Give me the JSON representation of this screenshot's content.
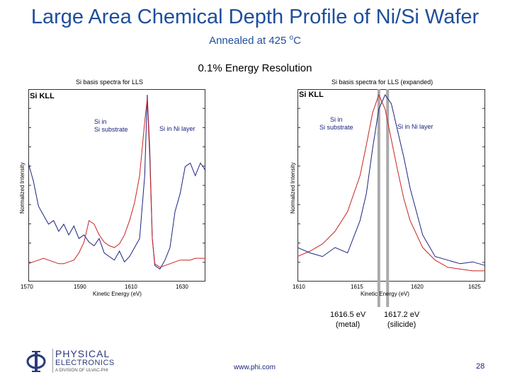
{
  "title": "Large Area Chemical Depth Profile of Ni/Si Wafer",
  "subtitle_prefix": "Annealed at 425 ",
  "subtitle_degree": "o",
  "subtitle_suffix": "C",
  "resolution": "0.1% Energy Resolution",
  "left_chart": {
    "title": "Si basis spectra for LLS",
    "corner_label": "Si KLL",
    "ylabel": "Normalized Intensity",
    "xlabel": "Kinetic Energy (eV)",
    "annotations": {
      "substrate": [
        "Si in",
        "Si substrate"
      ],
      "ni_layer": "Si in Ni layer"
    },
    "xticks": [
      "1570",
      "1590",
      "1610",
      "1630"
    ]
  },
  "right_chart": {
    "title": "Si basis spectra for LLS (expanded)",
    "corner_label": "Si KLL",
    "ylabel": "Normalized Intensity",
    "xlabel": "Kinetic Energy (eV)",
    "annotations": {
      "substrate": [
        "Si in",
        "Si substrate"
      ],
      "ni_layer": "Si in Ni layer"
    },
    "xticks": [
      "1610",
      "1615",
      "1620",
      "1625"
    ]
  },
  "peaks": [
    {
      "value": "1616.5 eV",
      "label": "(metal)"
    },
    {
      "value": "1617.2 eV",
      "label": "(silicide)"
    }
  ],
  "chart_data": [
    {
      "type": "line",
      "title": "Si basis spectra for LLS",
      "xlabel": "Kinetic Energy (eV)",
      "ylabel": "Normalized Intensity",
      "xlim": [
        1570,
        1640
      ],
      "ylim": [
        0,
        1
      ],
      "grid": false,
      "series": [
        {
          "color": "#1a237e",
          "x": [
            1570,
            1572,
            1574,
            1576,
            1578,
            1580,
            1582,
            1584,
            1586,
            1588,
            1590,
            1592,
            1594,
            1596,
            1598,
            1600,
            1602,
            1604,
            1606,
            1608,
            1610,
            1612,
            1614,
            1616,
            1617,
            1618,
            1619,
            1620,
            1622,
            1624,
            1626,
            1628,
            1630,
            1632,
            1634,
            1636,
            1638,
            1640
          ],
          "y": [
            0.62,
            0.52,
            0.38,
            0.33,
            0.28,
            0.3,
            0.24,
            0.28,
            0.22,
            0.27,
            0.2,
            0.22,
            0.18,
            0.16,
            0.2,
            0.12,
            0.1,
            0.08,
            0.13,
            0.07,
            0.1,
            0.15,
            0.2,
            0.55,
            1.0,
            0.7,
            0.2,
            0.05,
            0.03,
            0.08,
            0.15,
            0.35,
            0.45,
            0.6,
            0.62,
            0.55,
            0.62,
            0.58
          ]
        },
        {
          "color": "#cc2222",
          "x": [
            1570,
            1572,
            1574,
            1576,
            1578,
            1580,
            1582,
            1584,
            1586,
            1588,
            1590,
            1592,
            1594,
            1596,
            1598,
            1600,
            1602,
            1604,
            1606,
            1608,
            1610,
            1612,
            1614,
            1616,
            1617,
            1618,
            1619,
            1620,
            1622,
            1624,
            1626,
            1628,
            1630,
            1632,
            1634,
            1636,
            1638,
            1640
          ],
          "y": [
            0.06,
            0.07,
            0.08,
            0.09,
            0.08,
            0.07,
            0.06,
            0.06,
            0.07,
            0.08,
            0.12,
            0.18,
            0.3,
            0.28,
            0.22,
            0.18,
            0.16,
            0.15,
            0.17,
            0.22,
            0.3,
            0.4,
            0.55,
            0.85,
            0.98,
            0.65,
            0.2,
            0.06,
            0.04,
            0.05,
            0.06,
            0.07,
            0.08,
            0.08,
            0.08,
            0.09,
            0.09,
            0.09
          ]
        }
      ]
    },
    {
      "type": "line",
      "title": "Si basis spectra for LLS (expanded)",
      "xlabel": "Kinetic Energy (eV)",
      "ylabel": "Normalized Intensity",
      "xlim": [
        1610,
        1625
      ],
      "ylim": [
        0,
        1
      ],
      "grid": false,
      "series": [
        {
          "color": "#cc2222",
          "x": [
            1610,
            1611,
            1612,
            1613,
            1614,
            1615,
            1615.5,
            1616,
            1616.5,
            1617,
            1617.5,
            1618,
            1618.5,
            1619,
            1620,
            1621,
            1622,
            1623,
            1624,
            1625
          ],
          "y": [
            0.1,
            0.13,
            0.17,
            0.24,
            0.35,
            0.55,
            0.72,
            0.9,
            1.0,
            0.92,
            0.75,
            0.58,
            0.42,
            0.3,
            0.15,
            0.08,
            0.04,
            0.03,
            0.02,
            0.02
          ]
        },
        {
          "color": "#1a237e",
          "x": [
            1610,
            1611,
            1612,
            1613,
            1614,
            1615,
            1615.5,
            1616,
            1616.5,
            1617,
            1617.5,
            1618,
            1618.5,
            1619,
            1620,
            1621,
            1622,
            1623,
            1624,
            1625
          ],
          "y": [
            0.15,
            0.12,
            0.1,
            0.15,
            0.12,
            0.3,
            0.45,
            0.7,
            0.92,
            1.0,
            0.95,
            0.8,
            0.65,
            0.48,
            0.22,
            0.1,
            0.08,
            0.06,
            0.07,
            0.05
          ]
        }
      ],
      "markers": [
        1616.5,
        1617.2
      ]
    }
  ],
  "logo": {
    "line1": "PHYSICAL",
    "line2": "ELECTRONICS",
    "line3": "A DIVISION OF ULVAC-PHI"
  },
  "url": "www.phi.com",
  "page_number": "28",
  "colors": {
    "title": "#1f4e9c",
    "blue_series": "#1a237e",
    "red_series": "#cc2222",
    "marker": "#aaaaaa"
  }
}
